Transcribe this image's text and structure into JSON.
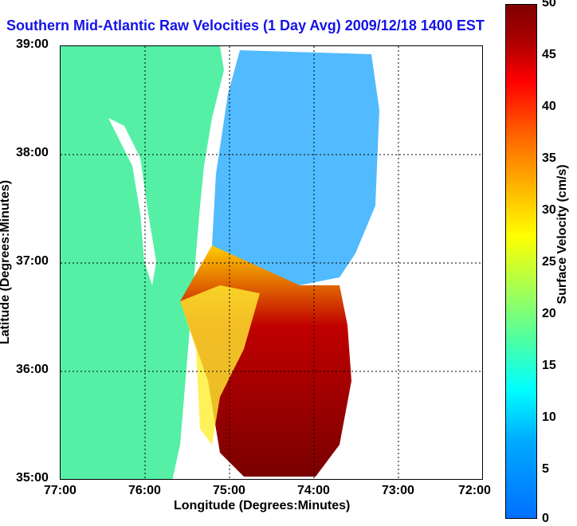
{
  "title": "Southern Mid-Atlantic Raw Velocities (1 Day Avg) 2009/12/18 1400 EST",
  "xlabel": "Longitude (Degrees:Minutes)",
  "ylabel": "Latitude (Degrees:Minutes)",
  "colorbar_label": "Surface Velocity (cm/s)",
  "x_ticks": [
    "77:00",
    "76:00",
    "75:00",
    "74:00",
    "73:00",
    "72:00"
  ],
  "y_ticks": [
    "39:00",
    "38:00",
    "37:00",
    "36:00",
    "35:00"
  ],
  "colorbar_ticks": [
    "50",
    "45",
    "40",
    "35",
    "30",
    "25",
    "20",
    "15",
    "10",
    "5",
    "0"
  ],
  "colors": {
    "title": "#1414e6",
    "land": "#55f0a6",
    "vector": "#000000"
  },
  "chart_data": {
    "type": "heatmap",
    "title": "Southern Mid-Atlantic Raw Velocities (1 Day Avg) 2009/12/18 1400 EST",
    "xlabel": "Longitude (Degrees:Minutes)",
    "ylabel": "Latitude (Degrees:Minutes)",
    "xlim": [
      -77,
      -72
    ],
    "ylim": [
      35,
      39
    ],
    "colorbar": {
      "label": "Surface Velocity (cm/s)",
      "range": [
        0,
        50
      ]
    },
    "grid": true
  }
}
